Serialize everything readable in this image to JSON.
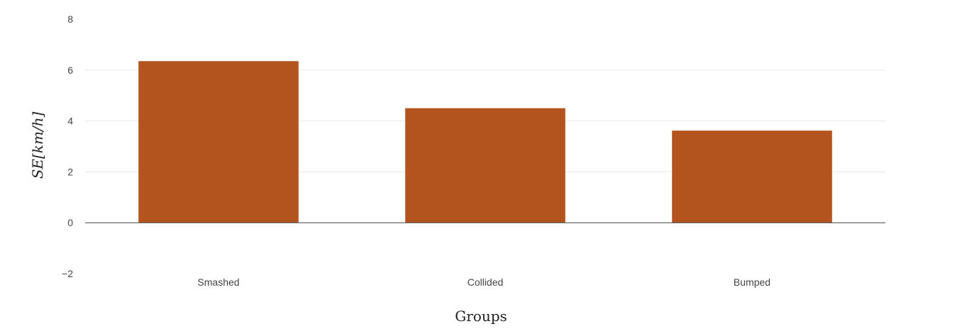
{
  "chart_data": {
    "type": "bar",
    "categories": [
      "Smashed",
      "Collided",
      "Bumped"
    ],
    "values": [
      6.35,
      4.5,
      3.62
    ],
    "title": "",
    "xlabel": "Groups",
    "ylabel": "SE[km/h]",
    "ylim": [
      -2,
      8
    ],
    "yticks": [
      -2,
      0,
      2,
      4,
      6,
      8
    ],
    "ytick_labels": [
      "−2",
      "0",
      "2",
      "4",
      "6",
      "8"
    ],
    "grid": true,
    "legend": "none",
    "colors": {
      "bar": "#b3541e",
      "grid": "#e8e8e8",
      "zeroline": "#444444"
    }
  }
}
